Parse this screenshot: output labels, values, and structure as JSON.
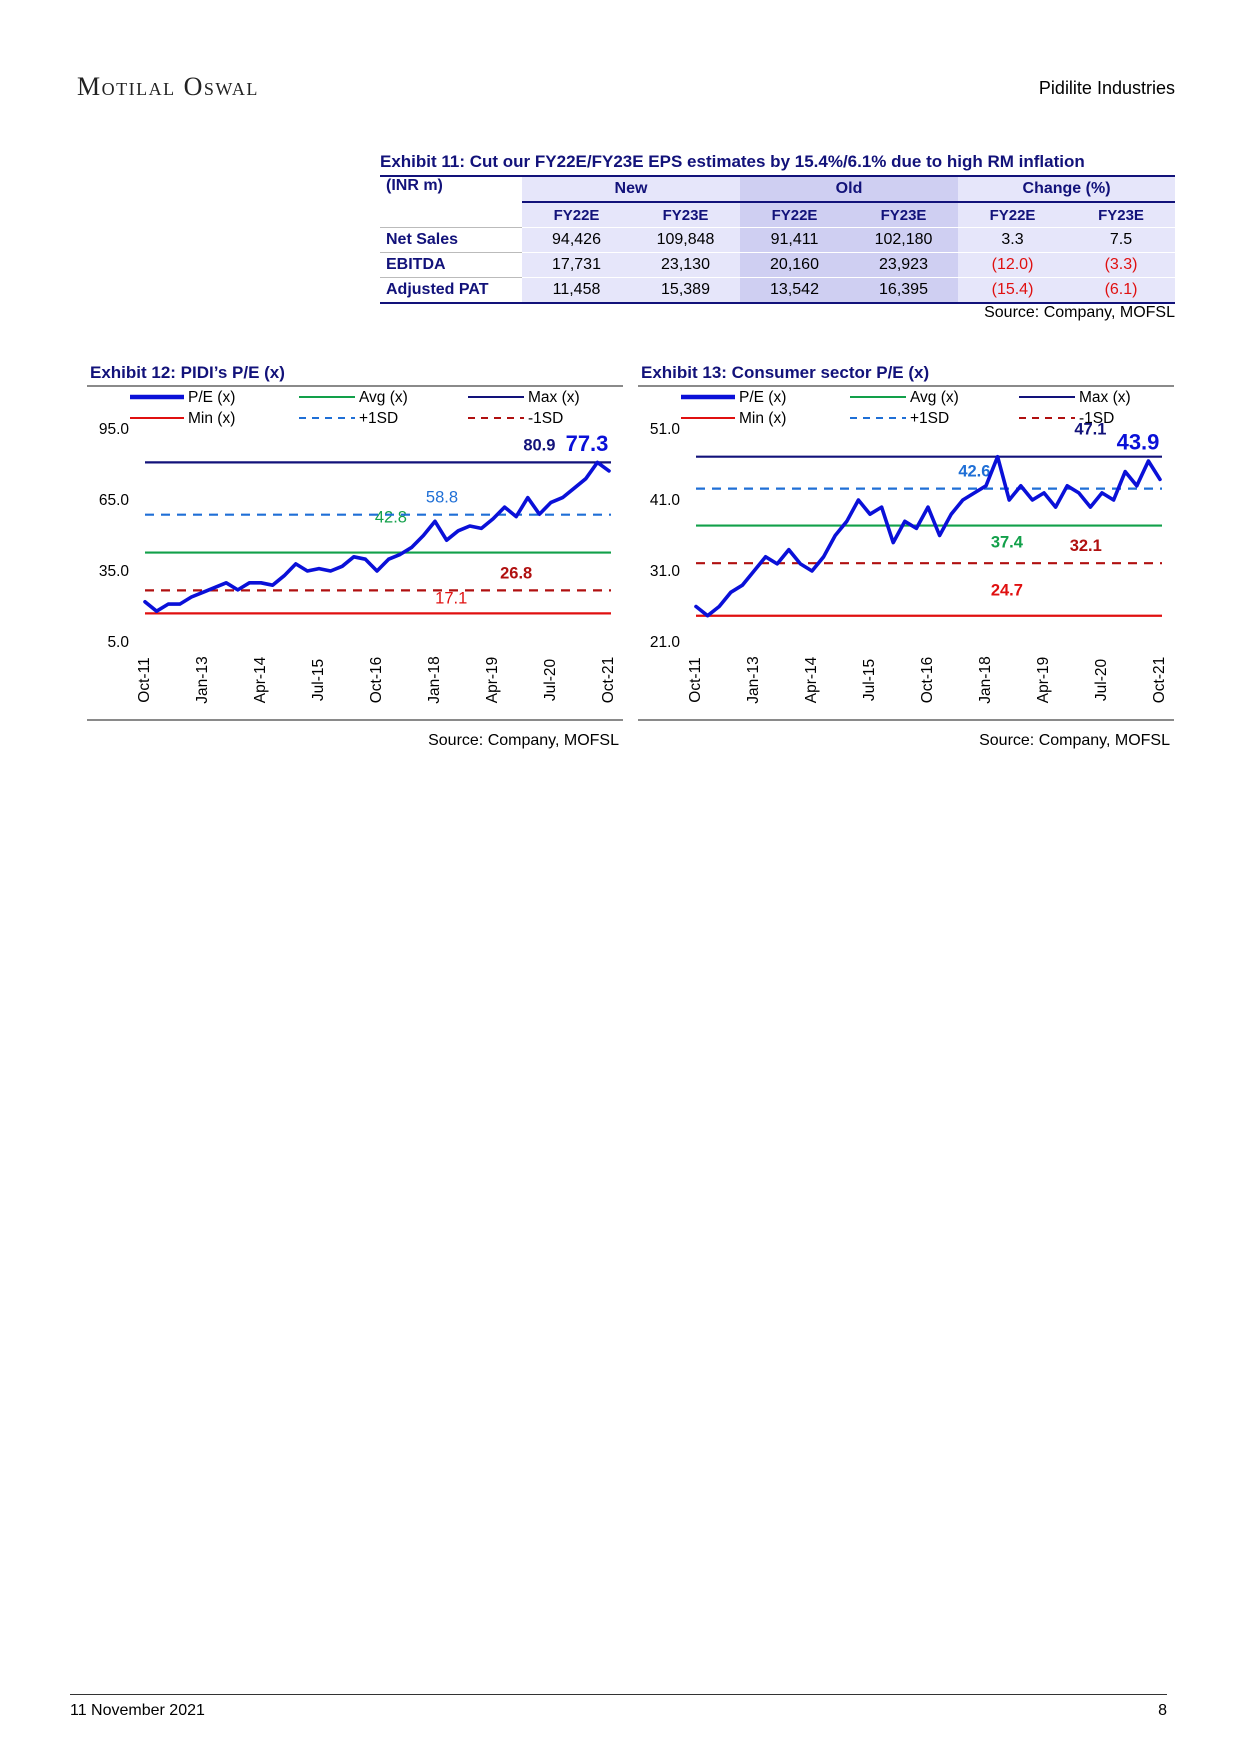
{
  "header": {
    "brand": "Motilal Oswal",
    "company": "Pidilite Industries"
  },
  "table": {
    "title": "Exhibit 11: Cut our FY22E/FY23E EPS estimates by 15.4%/6.1% due to high RM inflation",
    "corner": "(INR m)",
    "groups": [
      "New",
      "Old",
      "Change (%)"
    ],
    "subheaders": [
      "FY22E",
      "FY23E",
      "FY22E",
      "FY23E",
      "FY22E",
      "FY23E"
    ],
    "rows": [
      [
        "Net Sales",
        "94,426",
        "109,848",
        "91,411",
        "102,180",
        "3.3",
        "7.5"
      ],
      [
        "EBITDA",
        "17,731",
        "23,130",
        "20,160",
        "23,923",
        "(12.0)",
        "(3.3)"
      ],
      [
        "Adjusted PAT",
        "11,458",
        "15,389",
        "13,542",
        "16,395",
        "(15.4)",
        "(6.1)"
      ]
    ],
    "source": "Source: Company, MOFSL"
  },
  "chart_data": [
    {
      "type": "line",
      "title": "Exhibit 12: PIDI’s P/E (x)",
      "source": "Source: Company, MOFSL",
      "categories": [
        "Oct-11",
        null,
        null,
        null,
        null,
        "Jan-13",
        null,
        null,
        null,
        null,
        "Apr-14",
        null,
        null,
        null,
        null,
        "Jul-15",
        null,
        null,
        null,
        null,
        "Oct-16",
        null,
        null,
        null,
        null,
        "Jan-18",
        null,
        null,
        null,
        null,
        "Apr-19",
        null,
        null,
        null,
        null,
        "Jul-20",
        null,
        null,
        null,
        null,
        "Oct-21"
      ],
      "series": [
        {
          "name": "P/E (x)",
          "color": "#0a10d8",
          "values": [
            22,
            18,
            21,
            21,
            24,
            26,
            28,
            30,
            27,
            30,
            30,
            29,
            33,
            38,
            35,
            36,
            35,
            37,
            41,
            40,
            35,
            40,
            42,
            45,
            50,
            56,
            48,
            52,
            54,
            53,
            57,
            62,
            58,
            66,
            59,
            64,
            66,
            70,
            74,
            80.9,
            77.3
          ]
        }
      ],
      "hlines": [
        {
          "name": "Avg (x)",
          "value": 42.8,
          "color": "#12a04a",
          "dashed": false
        },
        {
          "name": "Max (x)",
          "value": 80.9,
          "color": "#12127a",
          "dashed": false
        },
        {
          "name": "Min (x)",
          "value": 17.1,
          "color": "#e01010",
          "dashed": false
        },
        {
          "name": "+1SD",
          "value": 58.8,
          "color": "#1f6fd6",
          "dashed": true
        },
        {
          "name": "-1SD",
          "value": 26.8,
          "color": "#b01010",
          "dashed": true
        }
      ],
      "ylim": [
        5,
        95
      ],
      "yticks": [
        {
          "value": 5,
          "label": "5.0"
        },
        {
          "value": 35,
          "label": "35.0"
        },
        {
          "value": 65,
          "label": "65.0"
        },
        {
          "value": 95,
          "label": "95.0"
        }
      ]
    },
    {
      "type": "line",
      "title": "Exhibit 13: Consumer sector P/E (x)",
      "source": "Source: Company, MOFSL",
      "categories": [
        "Oct-11",
        null,
        null,
        null,
        null,
        "Jan-13",
        null,
        null,
        null,
        null,
        "Apr-14",
        null,
        null,
        null,
        null,
        "Jul-15",
        null,
        null,
        null,
        null,
        "Oct-16",
        null,
        null,
        null,
        null,
        "Jan-18",
        null,
        null,
        null,
        null,
        "Apr-19",
        null,
        null,
        null,
        null,
        "Jul-20",
        null,
        null,
        null,
        null,
        "Oct-21"
      ],
      "series": [
        {
          "name": "P/E (x)",
          "color": "#0a10d8",
          "values": [
            26,
            24.7,
            26,
            28,
            29,
            31,
            33,
            32,
            34,
            32,
            31,
            33,
            36,
            38,
            41,
            39,
            40,
            35,
            38,
            37,
            40,
            36,
            39,
            41,
            42,
            43,
            47.1,
            41,
            43,
            41,
            42,
            40,
            43,
            42,
            40,
            42,
            41,
            45,
            43,
            46.5,
            43.9
          ]
        }
      ],
      "hlines": [
        {
          "name": "Avg (x)",
          "value": 37.4,
          "color": "#12a04a",
          "dashed": false
        },
        {
          "name": "Max (x)",
          "value": 47.1,
          "color": "#12127a",
          "dashed": false
        },
        {
          "name": "Min (x)",
          "value": 24.7,
          "color": "#e01010",
          "dashed": false
        },
        {
          "name": "+1SD",
          "value": 42.6,
          "color": "#1f6fd6",
          "dashed": true
        },
        {
          "name": "-1SD",
          "value": 32.1,
          "color": "#b01010",
          "dashed": true
        }
      ],
      "ylim": [
        21,
        51
      ],
      "yticks": [
        {
          "value": 21,
          "label": "21.0"
        },
        {
          "value": 31,
          "label": "31.0"
        },
        {
          "value": 41,
          "label": "41.0"
        },
        {
          "value": 51,
          "label": "51.0"
        }
      ]
    }
  ],
  "footer": {
    "date": "11 November 2021",
    "page": "8"
  }
}
